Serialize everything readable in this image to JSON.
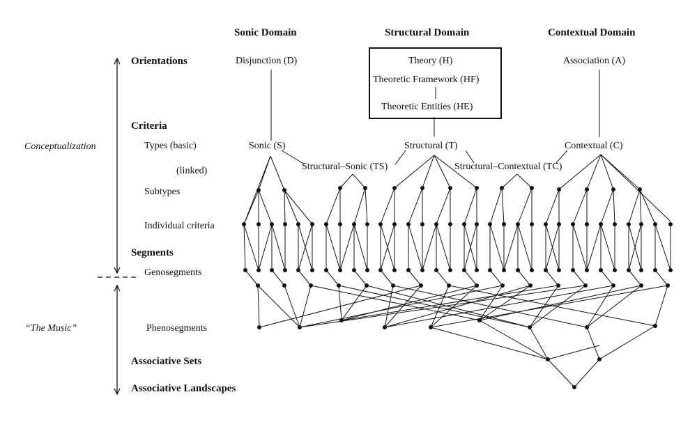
{
  "domains": {
    "sonic": "Sonic Domain",
    "structural": "Structural Domain",
    "contextual": "Contextual Domain"
  },
  "levels": {
    "orientations": "Orientations",
    "criteria": "Criteria",
    "types_basic": "Types (basic)",
    "linked": "(linked)",
    "subtypes": "Subtypes",
    "individual_criteria": "Individual criteria",
    "segments": "Segments",
    "genosegments": "Genosegments",
    "phenosegments": "Phenosegments",
    "associative_sets": "Associative Sets",
    "associative_landscapes": "Associative Landscapes"
  },
  "side_labels": {
    "conceptualization": "Conceptualization",
    "the_music": "“The Music”"
  },
  "orientations": {
    "disjunction": "Disjunction (D)",
    "theory": "Theory (H)",
    "theoretic_framework": "Theoretic Framework (HF)",
    "theoretic_entities": "Theoretic Entities (HE)",
    "association": "Association (A)"
  },
  "types": {
    "sonic": "Sonic (S)",
    "structural": "Structural (T)",
    "contextual": "Contextual (C)",
    "structural_sonic": "Structural–Sonic (TS)",
    "structural_contextual": "Structural–Contextual (TC)"
  },
  "colors": {
    "ink": "#111111",
    "background": "#ffffff"
  }
}
